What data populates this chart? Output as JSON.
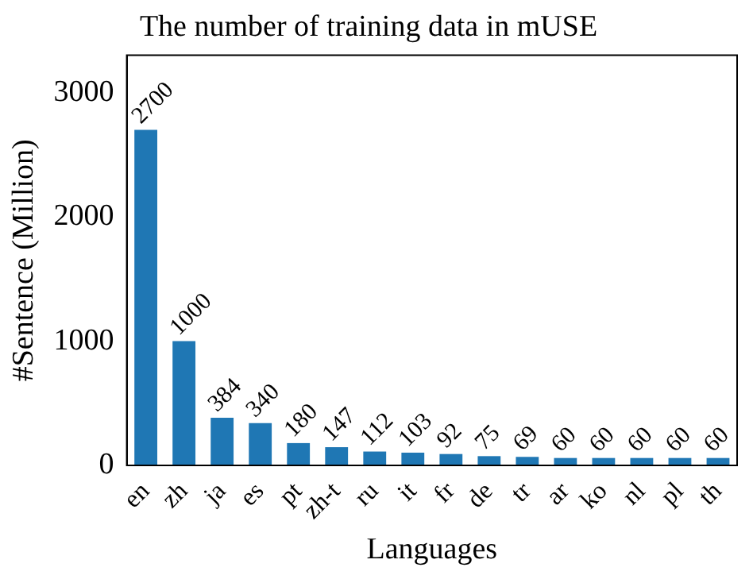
{
  "chart_data": {
    "type": "bar",
    "title": "The number of training data in mUSE",
    "xlabel": "Languages",
    "ylabel": "#Sentence (Million)",
    "categories": [
      "en",
      "zh",
      "ja",
      "es",
      "pt",
      "zh-t",
      "ru",
      "it",
      "fr",
      "de",
      "tr",
      "ar",
      "ko",
      "nl",
      "pl",
      "th"
    ],
    "values": [
      2700,
      1000,
      384,
      340,
      180,
      147,
      112,
      103,
      92,
      75,
      69,
      60,
      60,
      60,
      60,
      60
    ],
    "color": "#1f77b4",
    "ylim": [
      0,
      3300
    ],
    "yticks": [
      0,
      1000,
      2000,
      3000
    ],
    "grid": false,
    "legend": false,
    "data_labels": true
  }
}
